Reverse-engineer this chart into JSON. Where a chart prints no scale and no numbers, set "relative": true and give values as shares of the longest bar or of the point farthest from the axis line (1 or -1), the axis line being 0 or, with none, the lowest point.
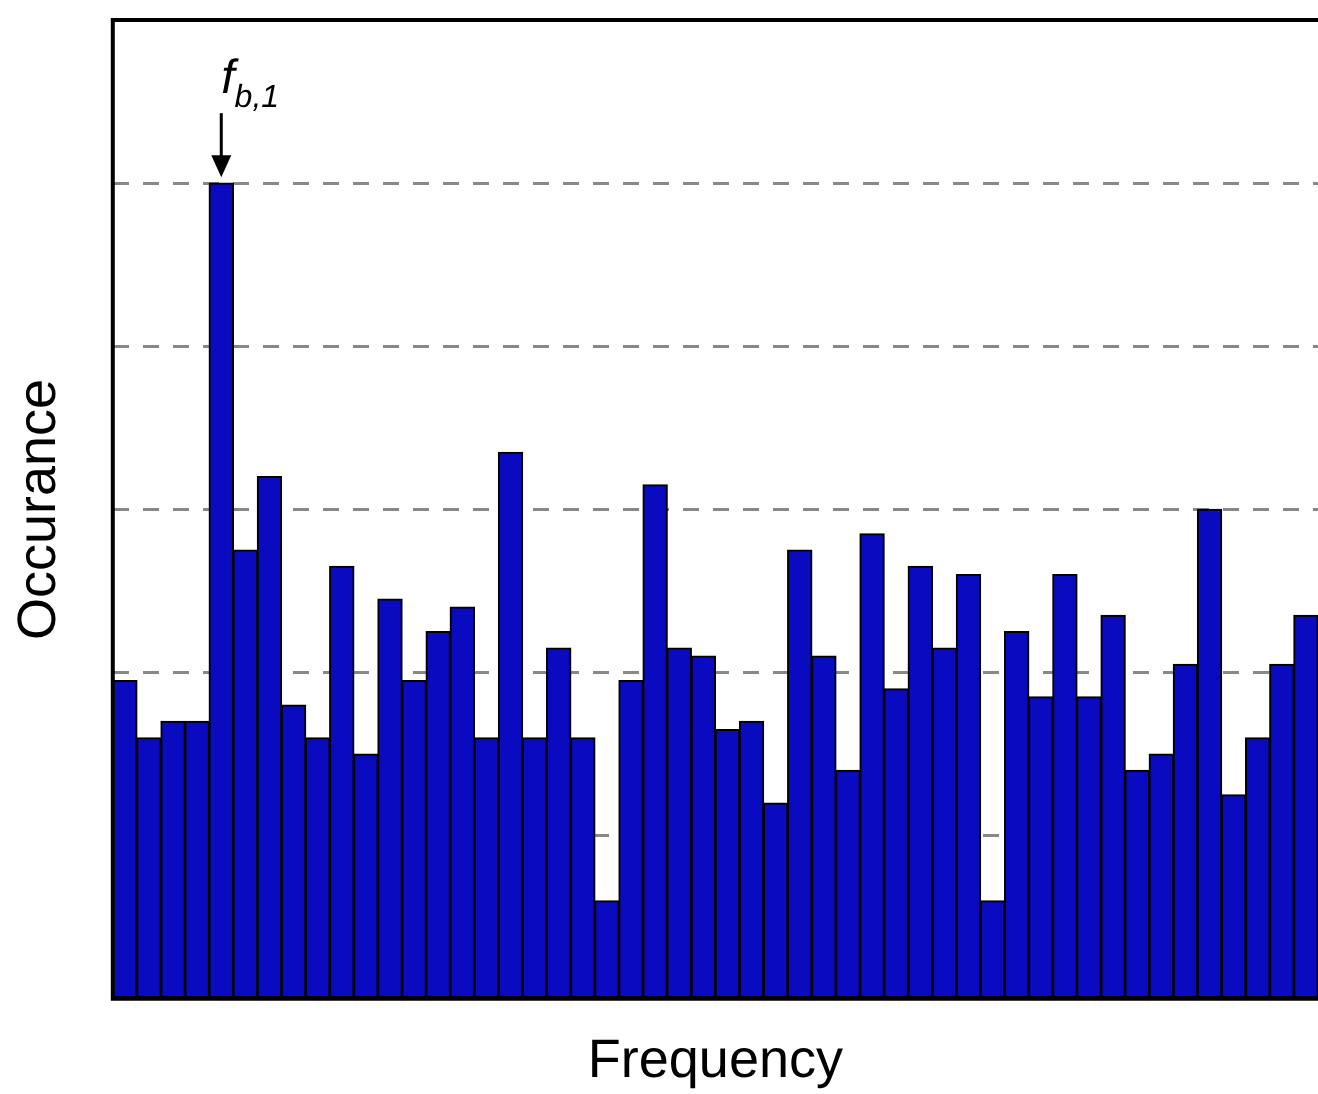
{
  "chart_data": {
    "type": "bar",
    "relative": true,
    "xlabel": "Frequency",
    "ylabel": "Occurance",
    "annotations": [
      "f$_{b,1}$"
    ],
    "grid": "y",
    "color": "#0a0ac0",
    "categories": [
      null,
      null,
      null,
      null,
      null,
      null,
      null,
      null,
      null,
      null,
      null,
      null,
      null,
      null,
      null,
      null,
      null,
      null,
      null,
      null,
      null,
      null,
      null,
      null,
      null,
      null,
      null,
      null,
      null,
      null,
      null,
      null,
      null,
      null,
      null,
      null,
      null,
      null,
      null,
      null,
      null,
      null,
      null,
      null,
      null,
      null,
      null,
      null,
      null,
      null
    ],
    "values": [
      0.39,
      0.32,
      0.34,
      0.34,
      1,
      0.55,
      0.64,
      0.36,
      0.32,
      0.53,
      0.3,
      0.49,
      0.39,
      0.45,
      0.48,
      0.32,
      0.67,
      0.32,
      0.43,
      0.32,
      0.12,
      0.39,
      0.63,
      0.43,
      0.42,
      0.33,
      0.34,
      0.24,
      0.55,
      0.42,
      0.28,
      0.57,
      0.38,
      0.53,
      0.43,
      0.52,
      0.12,
      0.45,
      0.37,
      0.52,
      0.37,
      0.47,
      0.28,
      0.3,
      0.41,
      0.6,
      0.25,
      0.32,
      0.41,
      0.47
    ]
  }
}
